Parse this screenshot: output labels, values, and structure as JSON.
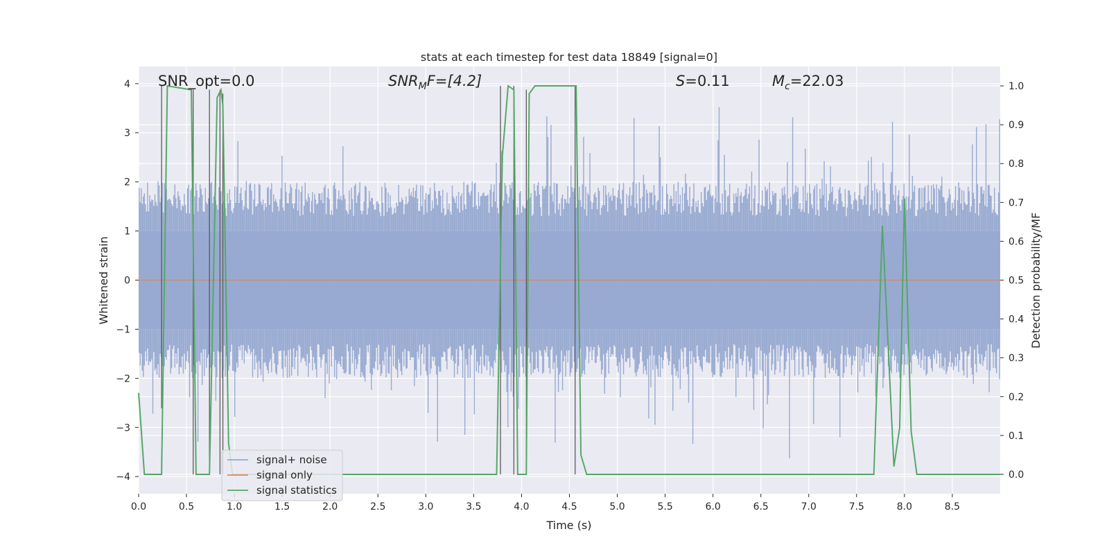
{
  "chart_data": {
    "type": "line",
    "title": "stats at each timestep for test data 18849 [signal=0]",
    "xlabel": "Time (s)",
    "ylabel": "Whitened strain",
    "y2label": "Detection probability/MF",
    "xlim": [
      0,
      9.0
    ],
    "ylim": [
      -4.35,
      4.35
    ],
    "y2lim": [
      -0.05,
      1.05
    ],
    "xticks": [
      0.0,
      0.5,
      1.0,
      1.5,
      2.0,
      2.5,
      3.0,
      3.5,
      4.0,
      4.5,
      5.0,
      5.5,
      6.0,
      6.5,
      7.0,
      7.5,
      8.0,
      8.5
    ],
    "xtick_labels": [
      "0.0",
      "0.5",
      "1.0",
      "1.5",
      "2.0",
      "2.5",
      "3.0",
      "3.5",
      "4.0",
      "4.5",
      "5.0",
      "5.5",
      "6.0",
      "6.5",
      "7.0",
      "7.5",
      "8.0",
      "8.5"
    ],
    "yticks": [
      -4,
      -3,
      -2,
      -1,
      0,
      1,
      2,
      3,
      4
    ],
    "ytick_labels": [
      "−4",
      "−3",
      "−2",
      "−1",
      "0",
      "1",
      "2",
      "3",
      "4"
    ],
    "y2ticks": [
      0.0,
      0.1,
      0.2,
      0.3,
      0.4,
      0.5,
      0.6,
      0.7,
      0.8,
      0.9,
      1.0
    ],
    "y2tick_labels": [
      "0.0",
      "0.1",
      "0.2",
      "0.3",
      "0.4",
      "0.5",
      "0.6",
      "0.7",
      "0.8",
      "0.9",
      "1.0"
    ],
    "annotations": {
      "snr_opt": "SNR_opt=0.0",
      "snr_mf_base": "SNR",
      "snr_mf_sub": "M",
      "snr_mf_value": "F=[4.2]",
      "s_base": "S",
      "s_value": "=0.11",
      "mc_base": "M",
      "mc_sub": "c",
      "mc_value": "=22.03"
    },
    "legend": {
      "location": "lower-left",
      "entries": [
        {
          "label": "signal+ noise",
          "color": "#93a6cf"
        },
        {
          "label": "signal only",
          "color": "#dd8452"
        },
        {
          "label": "signal statistics",
          "color": "#55a868"
        }
      ]
    },
    "noise_band": {
      "name": "signal+ noise",
      "color": "#93a6cf",
      "core_low": -1.0,
      "core_high": 1.0,
      "typical_peak": 2.0,
      "max_peak": 4.0,
      "min_trough": -4.0
    },
    "signal_only": {
      "name": "signal only",
      "color": "#dd8452",
      "value": 0.0
    },
    "series": [
      {
        "name": "signal statistics",
        "color": "#55a868",
        "x": [
          0.0,
          0.06,
          0.24,
          0.3,
          0.55,
          0.6,
          0.62,
          0.74,
          0.82,
          0.86,
          0.88,
          0.94,
          0.98,
          3.74,
          3.8,
          3.86,
          3.92,
          3.96,
          4.05,
          4.08,
          4.14,
          4.2,
          4.57,
          4.62,
          4.68,
          5.0,
          7.68,
          7.77,
          7.89,
          7.95,
          8.0,
          8.07,
          8.13,
          9.0
        ],
        "y": [
          0.21,
          0.0,
          0.0,
          1.0,
          0.99,
          0.0,
          0.0,
          0.0,
          0.97,
          0.99,
          0.95,
          0.08,
          0.0,
          0.0,
          0.82,
          1.0,
          0.99,
          0.0,
          0.0,
          0.98,
          1.0,
          1.0,
          1.0,
          0.05,
          0.0,
          0.0,
          0.0,
          0.64,
          0.02,
          0.12,
          0.71,
          0.11,
          0.0,
          0.0
        ]
      }
    ],
    "marker_lines": {
      "color": "#5a5a5a",
      "segments": [
        {
          "x": 0.24,
          "y1": 0.17,
          "y2": 1.0
        },
        {
          "x": 0.57,
          "y1": 0.0,
          "y2": 0.99
        },
        {
          "x": 0.74,
          "y1": 0.0,
          "y2": 0.99
        },
        {
          "x": 0.85,
          "y1": 0.0,
          "y2": 0.99
        },
        {
          "x": 0.88,
          "y1": 0.0,
          "y2": 0.98
        },
        {
          "x": 3.78,
          "y1": 0.0,
          "y2": 1.0
        },
        {
          "x": 3.92,
          "y1": 0.0,
          "y2": 1.0
        },
        {
          "x": 4.05,
          "y1": 0.0,
          "y2": 0.99
        },
        {
          "x": 4.56,
          "y1": 0.0,
          "y2": 1.0
        }
      ]
    }
  }
}
